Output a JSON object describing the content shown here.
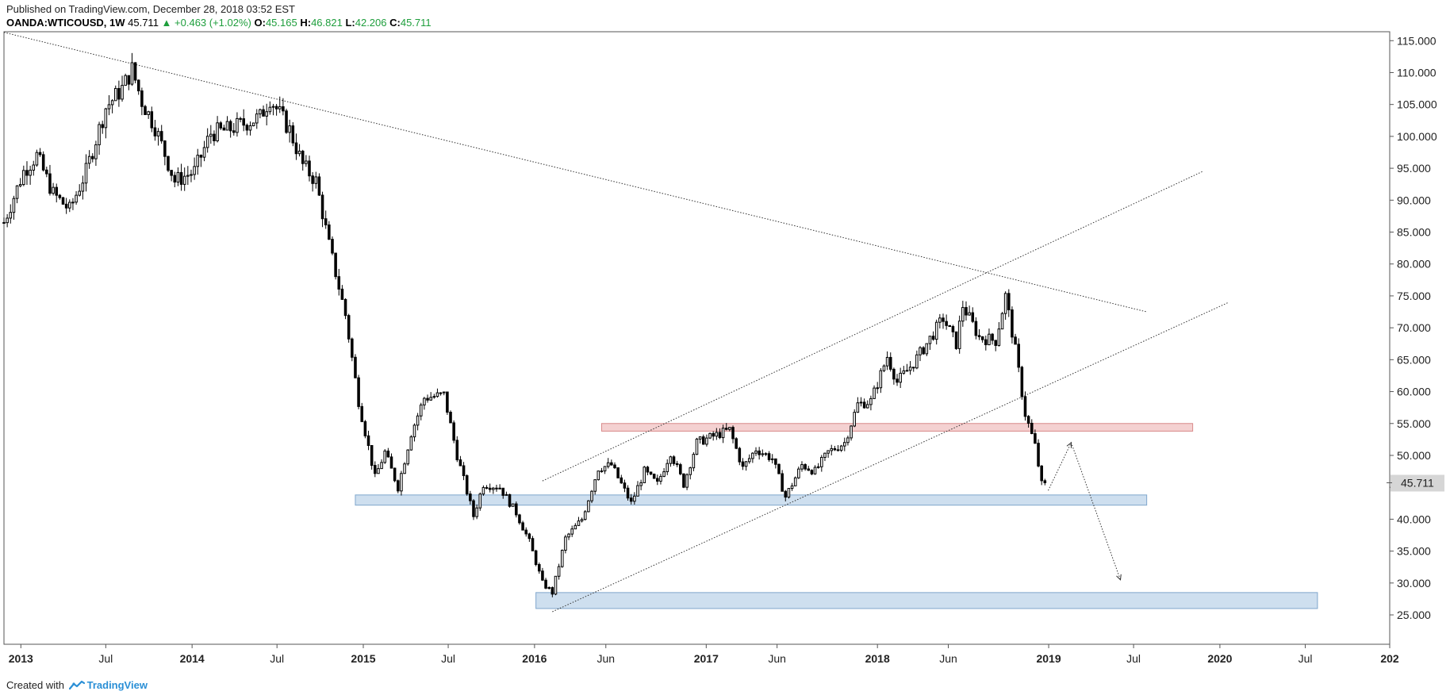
{
  "header": {
    "published": "Published on TradingView.com, December 28, 2018 03:52 EST",
    "symbol": "OANDA:WTICOUSD, 1W",
    "last": "45.711",
    "change": "▲ +0.463 (+1.02%)",
    "open_label": "O:",
    "open": "45.165",
    "high_label": "H:",
    "high": "46.821",
    "low_label": "L:",
    "low": "42.206",
    "close_label": "C:",
    "close": "45.711"
  },
  "footer": {
    "created": "Created with",
    "brand": "TradingView"
  },
  "colors": {
    "up": "#1e9e3c",
    "candle": "#000000",
    "support_zone": "#c5d9ec",
    "resistance_zone": "#f2c9c9",
    "price_tag": "#d6d6d6"
  },
  "chart_data": {
    "type": "candlestick",
    "timeframe": "1W",
    "x_range": [
      "2012-11-26",
      "2020-12-28"
    ],
    "ylim": [
      20.4,
      116.4
    ],
    "y_ticks": [
      "25.000",
      "30.000",
      "35.000",
      "40.000",
      "45.000",
      "50.000",
      "55.000",
      "60.000",
      "65.000",
      "70.000",
      "75.000",
      "80.000",
      "85.000",
      "90.000",
      "95.000",
      "100.000",
      "105.000",
      "110.000",
      "115.000"
    ],
    "y_tick_values": [
      25,
      30,
      35,
      40,
      45,
      50,
      55,
      60,
      65,
      70,
      75,
      80,
      85,
      90,
      95,
      100,
      105,
      110,
      115
    ],
    "x_ticks": [
      {
        "label": "2013",
        "date": "2013-01-01"
      },
      {
        "label": "Jul",
        "date": "2013-07-01"
      },
      {
        "label": "2014",
        "date": "2014-01-01"
      },
      {
        "label": "Jul",
        "date": "2014-07-01"
      },
      {
        "label": "2015",
        "date": "2015-01-01"
      },
      {
        "label": "Jul",
        "date": "2015-07-01"
      },
      {
        "label": "2016",
        "date": "2016-01-01"
      },
      {
        "label": "Jun",
        "date": "2016-06-01"
      },
      {
        "label": "2017",
        "date": "2017-01-01"
      },
      {
        "label": "Jun",
        "date": "2017-06-01"
      },
      {
        "label": "2018",
        "date": "2018-01-01"
      },
      {
        "label": "Jun",
        "date": "2018-06-01"
      },
      {
        "label": "2019",
        "date": "2019-01-01"
      },
      {
        "label": "Jul",
        "date": "2019-07-01"
      },
      {
        "label": "2020",
        "date": "2020-01-01"
      },
      {
        "label": "Jul",
        "date": "2020-07-01"
      },
      {
        "label": "202",
        "date": "2020-12-28"
      }
    ],
    "last_price_label": "45.711",
    "last_price": 45.711,
    "path": [
      [
        "2012-11-26",
        86.5
      ],
      [
        "2013-01-07",
        94.5
      ],
      [
        "2013-02-04",
        97.0
      ],
      [
        "2013-03-11",
        91.0
      ],
      [
        "2013-04-15",
        88.5
      ],
      [
        "2013-05-20",
        94.5
      ],
      [
        "2013-07-01",
        104.5
      ],
      [
        "2013-08-05",
        107.5
      ],
      [
        "2013-08-26",
        110.5
      ],
      [
        "2013-09-16",
        105.5
      ],
      [
        "2013-10-14",
        101.5
      ],
      [
        "2013-11-25",
        93.0
      ],
      [
        "2014-01-06",
        94.5
      ],
      [
        "2014-02-10",
        100.5
      ],
      [
        "2014-03-17",
        101.0
      ],
      [
        "2014-04-21",
        102.0
      ],
      [
        "2014-05-26",
        103.0
      ],
      [
        "2014-06-16",
        106.0
      ],
      [
        "2014-07-28",
        101.0
      ],
      [
        "2014-08-25",
        95.5
      ],
      [
        "2014-09-22",
        93.0
      ],
      [
        "2014-10-20",
        83.0
      ],
      [
        "2014-11-24",
        72.0
      ],
      [
        "2014-12-22",
        58.5
      ],
      [
        "2015-01-26",
        46.5
      ],
      [
        "2015-02-16",
        50.5
      ],
      [
        "2015-03-16",
        45.0
      ],
      [
        "2015-04-13",
        53.5
      ],
      [
        "2015-05-11",
        59.0
      ],
      [
        "2015-06-22",
        59.5
      ],
      [
        "2015-07-20",
        50.0
      ],
      [
        "2015-08-24",
        40.5
      ],
      [
        "2015-09-14",
        45.5
      ],
      [
        "2015-10-19",
        45.0
      ],
      [
        "2015-11-23",
        41.0
      ],
      [
        "2015-12-21",
        36.5
      ],
      [
        "2016-01-18",
        30.0
      ],
      [
        "2016-02-08",
        28.5
      ],
      [
        "2016-03-07",
        37.0
      ],
      [
        "2016-04-11",
        40.0
      ],
      [
        "2016-05-16",
        48.0
      ],
      [
        "2016-06-13",
        48.5
      ],
      [
        "2016-07-25",
        42.5
      ],
      [
        "2016-08-22",
        47.5
      ],
      [
        "2016-09-19",
        45.5
      ],
      [
        "2016-10-17",
        50.5
      ],
      [
        "2016-11-14",
        45.5
      ],
      [
        "2016-12-12",
        52.0
      ],
      [
        "2017-01-16",
        53.0
      ],
      [
        "2017-02-20",
        54.0
      ],
      [
        "2017-03-20",
        48.0
      ],
      [
        "2017-04-17",
        51.0
      ],
      [
        "2017-05-22",
        49.5
      ],
      [
        "2017-06-19",
        43.5
      ],
      [
        "2017-07-24",
        48.5
      ],
      [
        "2017-08-21",
        47.5
      ],
      [
        "2017-09-18",
        50.5
      ],
      [
        "2017-10-23",
        52.0
      ],
      [
        "2017-11-20",
        58.0
      ],
      [
        "2017-12-18",
        58.5
      ],
      [
        "2018-01-22",
        65.5
      ],
      [
        "2018-02-12",
        61.5
      ],
      [
        "2018-03-19",
        64.5
      ],
      [
        "2018-04-16",
        67.5
      ],
      [
        "2018-05-21",
        71.5
      ],
      [
        "2018-06-18",
        67.5
      ],
      [
        "2018-07-02",
        73.5
      ],
      [
        "2018-08-06",
        68.5
      ],
      [
        "2018-09-10",
        68.0
      ],
      [
        "2018-10-01",
        75.0
      ],
      [
        "2018-10-22",
        66.5
      ],
      [
        "2018-11-12",
        56.5
      ],
      [
        "2018-12-03",
        51.5
      ],
      [
        "2018-12-17",
        45.5
      ],
      [
        "2018-12-24",
        45.71
      ]
    ],
    "zones": [
      {
        "name": "support-zone-upper",
        "x": [
          "2014-12-15",
          "2019-07-29"
        ],
        "y": [
          42.2,
          43.8
        ]
      },
      {
        "name": "resistance-zone",
        "x": [
          "2016-05-23",
          "2019-11-04"
        ],
        "y": [
          53.8,
          55.0
        ]
      },
      {
        "name": "support-zone-lower",
        "x": [
          "2016-01-04",
          "2020-07-27"
        ],
        "y": [
          26.0,
          28.5
        ]
      }
    ],
    "trendlines": [
      {
        "name": "long-term-downtrend-line",
        "from": [
          "2012-11-26",
          116.3
        ],
        "to": [
          "2019-07-29",
          72.5
        ]
      },
      {
        "name": "channel-upper-line",
        "from": [
          "2016-01-18",
          46.0
        ],
        "to": [
          "2019-11-25",
          94.5
        ]
      },
      {
        "name": "channel-lower-line",
        "from": [
          "2016-02-08",
          25.5
        ],
        "to": [
          "2020-01-20",
          74.0
        ]
      }
    ],
    "projection": [
      [
        "2018-12-31",
        44.5
      ],
      [
        "2019-02-18",
        52.0
      ],
      [
        "2019-06-03",
        30.5
      ]
    ]
  }
}
